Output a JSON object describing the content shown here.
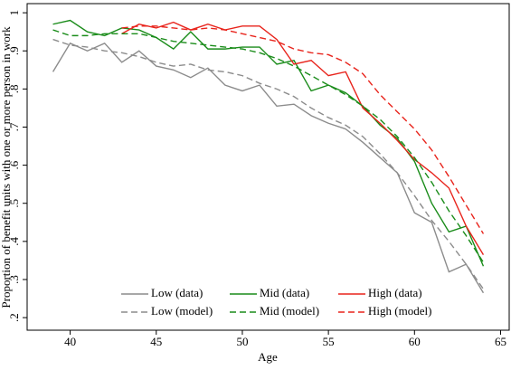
{
  "chart_data": {
    "type": "line",
    "x_label": "Age",
    "y_label": "Proportion of benefit units with one or more person in work",
    "x": [
      39,
      40,
      41,
      42,
      43,
      44,
      45,
      46,
      47,
      48,
      49,
      50,
      51,
      52,
      53,
      54,
      55,
      56,
      57,
      58,
      59,
      60,
      61,
      62,
      63,
      64
    ],
    "series": [
      {
        "name": "Low (data)",
        "color": "#8c8c8c",
        "dash": false,
        "values": [
          0.845,
          0.92,
          0.9,
          0.92,
          0.87,
          0.9,
          0.86,
          0.85,
          0.83,
          0.855,
          0.81,
          0.795,
          0.81,
          0.755,
          0.76,
          0.73,
          0.71,
          0.695,
          0.66,
          0.62,
          0.58,
          0.475,
          0.45,
          0.32,
          0.34,
          0.265
        ]
      },
      {
        "name": "Mid (data)",
        "color": "#1a8c1a",
        "dash": false,
        "values": [
          0.97,
          0.98,
          0.95,
          0.94,
          0.96,
          0.955,
          0.935,
          0.905,
          0.95,
          0.905,
          0.905,
          0.91,
          0.91,
          0.865,
          0.875,
          0.795,
          0.81,
          0.79,
          0.755,
          0.705,
          0.67,
          0.61,
          0.5,
          0.425,
          0.44,
          0.335
        ]
      },
      {
        "name": "High (data)",
        "color": "#e8241c",
        "dash": false,
        "values": [
          null,
          null,
          null,
          null,
          0.945,
          0.97,
          0.96,
          0.975,
          0.955,
          0.97,
          0.955,
          0.965,
          0.965,
          0.93,
          0.865,
          0.875,
          0.835,
          0.845,
          0.75,
          0.71,
          0.665,
          0.615,
          0.58,
          0.54,
          0.44,
          0.365
        ]
      },
      {
        "name": "Low (model)",
        "color": "#8c8c8c",
        "dash": true,
        "values": [
          0.93,
          0.915,
          0.91,
          0.9,
          0.895,
          0.885,
          0.87,
          0.86,
          0.865,
          0.85,
          0.845,
          0.835,
          0.815,
          0.8,
          0.78,
          0.75,
          0.725,
          0.705,
          0.675,
          0.63,
          0.58,
          0.52,
          0.455,
          0.4,
          0.34,
          0.275
        ]
      },
      {
        "name": "Mid (model)",
        "color": "#1a8c1a",
        "dash": true,
        "values": [
          0.955,
          0.94,
          0.94,
          0.945,
          0.945,
          0.945,
          0.935,
          0.925,
          0.92,
          0.915,
          0.91,
          0.905,
          0.895,
          0.88,
          0.86,
          0.835,
          0.81,
          0.785,
          0.755,
          0.72,
          0.675,
          0.62,
          0.555,
          0.48,
          0.415,
          0.345
        ]
      },
      {
        "name": "High (model)",
        "color": "#e8241c",
        "dash": true,
        "values": [
          null,
          null,
          null,
          null,
          0.96,
          0.965,
          0.965,
          0.96,
          0.955,
          0.96,
          0.955,
          0.945,
          0.935,
          0.925,
          0.905,
          0.895,
          0.89,
          0.87,
          0.84,
          0.785,
          0.74,
          0.695,
          0.64,
          0.57,
          0.495,
          0.42
        ]
      }
    ],
    "xlim": [
      37.5,
      65.5
    ],
    "xticks": [
      40,
      45,
      50,
      55,
      60,
      65
    ],
    "ylim": [
      0.167,
      1.024
    ],
    "yticks": [
      {
        "value": 0.2,
        "label": ".2"
      },
      {
        "value": 0.3,
        "label": ".3"
      },
      {
        "value": 0.4,
        "label": ".4"
      },
      {
        "value": 0.5,
        "label": ".5"
      },
      {
        "value": 0.6,
        "label": ".6"
      },
      {
        "value": 0.7,
        "label": ".7"
      },
      {
        "value": 0.8,
        "label": ".8"
      },
      {
        "value": 0.9,
        "label": ".9"
      },
      1
    ],
    "grid": false,
    "legend": "bottom"
  }
}
